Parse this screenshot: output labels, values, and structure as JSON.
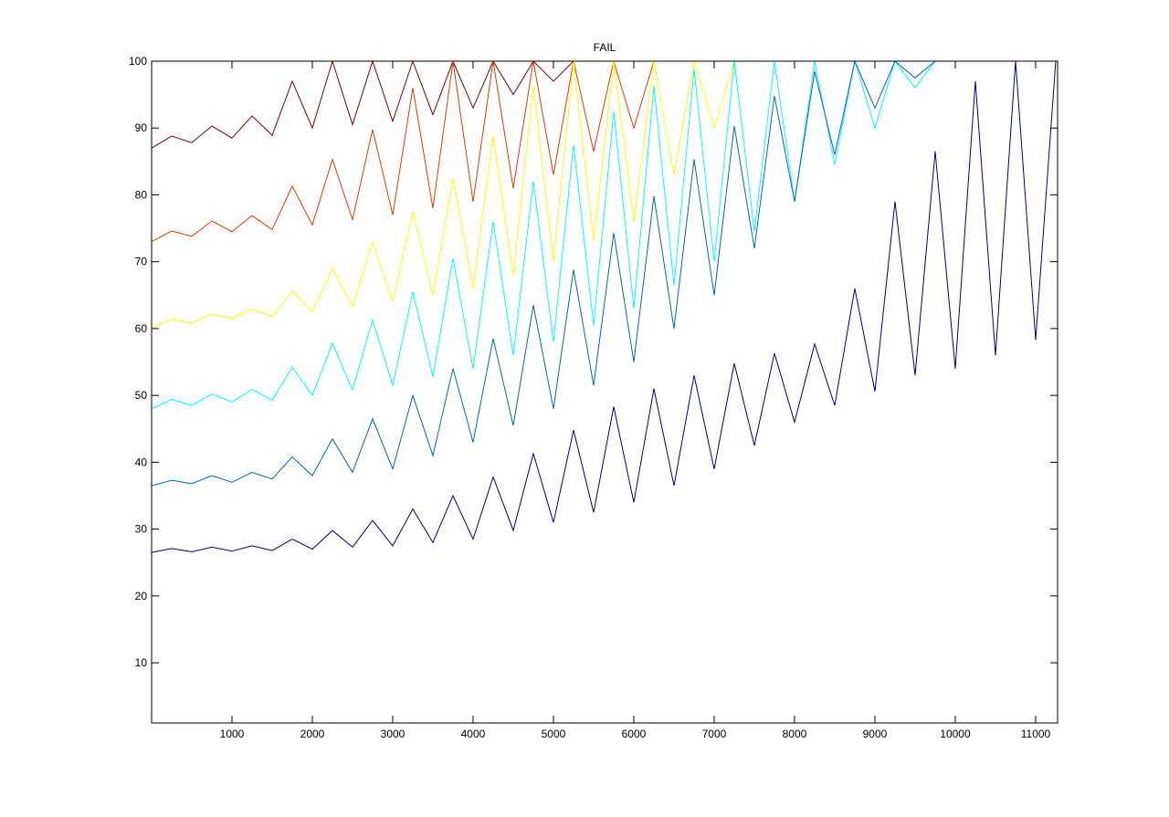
{
  "chart_data": {
    "type": "line",
    "title": "FAIL",
    "x": [
      0,
      250,
      500,
      750,
      1000,
      1250,
      1500,
      1750,
      2000,
      2250,
      2500,
      2750,
      3000,
      3250,
      3500,
      3750,
      4000,
      4250,
      4500,
      4750,
      5000,
      5250,
      5500,
      5750,
      6000,
      6250,
      6500,
      6750,
      7000,
      7250,
      7500,
      7750,
      8000,
      8250,
      8500,
      8750,
      9000,
      9250,
      9500,
      9750,
      10000,
      10250,
      10500,
      10750,
      11000,
      11250
    ],
    "series": [
      {
        "color": "#7f0000",
        "values": [
          87,
          88.8,
          87.8,
          90.3,
          88.5,
          91.8,
          88.9,
          97,
          90,
          100,
          90.5,
          100,
          91,
          100,
          92,
          100,
          93,
          100,
          95,
          100,
          97,
          100,
          100,
          null,
          null,
          null,
          null,
          null,
          null,
          null,
          null,
          null,
          null,
          null,
          null,
          null,
          null,
          null,
          null,
          null,
          null,
          null,
          null,
          null,
          null,
          null
        ]
      },
      {
        "color": "#e03c00",
        "values": [
          73,
          74.6,
          73.8,
          76.1,
          74.5,
          76.9,
          74.8,
          81.3,
          75.5,
          85.3,
          76.3,
          89.8,
          77,
          96,
          78,
          100,
          79,
          100,
          81,
          100,
          83,
          100,
          86.5,
          100,
          90,
          100,
          100,
          null,
          null,
          null,
          null,
          null,
          null,
          null,
          null,
          null,
          null,
          null,
          null,
          null,
          null,
          null,
          null,
          null,
          null,
          null
        ]
      },
      {
        "color": "#ffff00",
        "values": [
          60,
          61.4,
          60.8,
          62.2,
          61.5,
          62.9,
          61.8,
          65.6,
          62.5,
          69,
          63.3,
          73,
          64,
          77.5,
          65,
          82.5,
          66,
          88.8,
          68,
          96.3,
          70,
          100,
          73,
          100,
          76,
          100,
          83,
          100,
          90,
          100,
          100,
          null,
          null,
          null,
          null,
          null,
          null,
          null,
          null,
          null,
          null,
          null,
          null,
          null,
          null,
          null
        ]
      },
      {
        "color": "#00ffff",
        "values": [
          48,
          49.4,
          48.5,
          50.2,
          49,
          50.9,
          49.3,
          54.2,
          50,
          57.8,
          50.8,
          61.3,
          51.5,
          65.5,
          52.8,
          70.5,
          54,
          76,
          56,
          82,
          58,
          87.5,
          60.5,
          92.5,
          63,
          96.3,
          66.5,
          98.8,
          70,
          100,
          74.5,
          100,
          79,
          100,
          84.5,
          100,
          90,
          100,
          96,
          100,
          null,
          null,
          null,
          null,
          null,
          null
        ]
      },
      {
        "color": "#0066bb",
        "values": [
          36.5,
          37.3,
          36.8,
          38,
          37,
          38.5,
          37.5,
          40.8,
          38,
          43.5,
          38.5,
          46.5,
          39,
          50,
          41,
          54,
          43,
          58.5,
          45.5,
          63.5,
          48,
          68.8,
          51.5,
          74.3,
          55,
          79.8,
          60,
          85.3,
          65,
          90.3,
          72,
          94.8,
          79,
          98.5,
          86,
          100,
          93,
          100,
          97.5,
          100,
          null,
          null,
          null,
          null,
          null,
          null
        ]
      },
      {
        "color": "#000080",
        "values": [
          26.5,
          27.1,
          26.6,
          27.3,
          26.7,
          27.5,
          26.8,
          28.5,
          27,
          29.8,
          27.3,
          31.3,
          27.5,
          33,
          28,
          35,
          28.5,
          37.8,
          29.8,
          41.3,
          31,
          44.8,
          32.5,
          48.3,
          34,
          51,
          36.5,
          53,
          39,
          54.8,
          42.5,
          56.3,
          46,
          57.7,
          48.5,
          66,
          50.6,
          79,
          53,
          86.5,
          54,
          97,
          56,
          100,
          58.3,
          100
        ]
      }
    ],
    "xlim": [
      0,
      11273
    ],
    "ylim": [
      1,
      100
    ],
    "xticks": [
      1000,
      2000,
      3000,
      4000,
      5000,
      6000,
      7000,
      8000,
      9000,
      10000,
      11000
    ],
    "yticks": [
      10,
      20,
      30,
      40,
      50,
      60,
      70,
      80,
      90,
      100
    ]
  }
}
